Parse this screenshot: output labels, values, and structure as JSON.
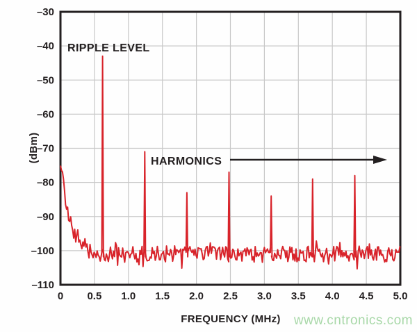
{
  "figure": {
    "background": "#fefefe"
  },
  "watermark": {
    "text": "www.cntronics.com",
    "color": "#a8d8a8"
  },
  "chart_data": {
    "type": "line",
    "title": "",
    "xlabel": "FREQUENCY (MHz)",
    "ylabel": "(dBm)",
    "xlim": [
      0,
      5
    ],
    "ylim": [
      -110,
      -30
    ],
    "grid": true,
    "legend_position": "none",
    "trace_color": "#d8232a",
    "grid_color": "#c8c8c8",
    "axis_color": "#231f20",
    "x_ticks": [
      {
        "value": 0,
        "label": "0"
      },
      {
        "value": 0.5,
        "label": "0.5"
      },
      {
        "value": 1.0,
        "label": "1.0"
      },
      {
        "value": 1.5,
        "label": "1.5"
      },
      {
        "value": 2.0,
        "label": "2.0"
      },
      {
        "value": 2.5,
        "label": "2.5"
      },
      {
        "value": 3.0,
        "label": "3.0"
      },
      {
        "value": 3.5,
        "label": "3.5"
      },
      {
        "value": 4.0,
        "label": "4.0"
      },
      {
        "value": 4.5,
        "label": "4.5"
      },
      {
        "value": 5.0,
        "label": "5.0"
      }
    ],
    "y_ticks": [
      {
        "value": -30,
        "label": "–30"
      },
      {
        "value": -40,
        "label": "–40"
      },
      {
        "value": -50,
        "label": "–50"
      },
      {
        "value": -60,
        "label": "–60"
      },
      {
        "value": -70,
        "label": "–70"
      },
      {
        "value": -80,
        "label": "–80"
      },
      {
        "value": -90,
        "label": "–90"
      },
      {
        "value": -100,
        "label": "–100"
      },
      {
        "value": -110,
        "label": "–110"
      }
    ],
    "noise_floor_dbm": -101,
    "noise_amplitude_db": 2.4,
    "low_freq_shoulder": {
      "start_dbm": -73,
      "decay_mhz": 0.13
    },
    "peaks": [
      {
        "name": "ripple",
        "freq_mhz": 0.62,
        "dbm": -43
      },
      {
        "name": "harmonic-2",
        "freq_mhz": 1.24,
        "dbm": -71
      },
      {
        "name": "harmonic-3",
        "freq_mhz": 1.86,
        "dbm": -83
      },
      {
        "name": "harmonic-4",
        "freq_mhz": 2.48,
        "dbm": -77
      },
      {
        "name": "harmonic-5",
        "freq_mhz": 3.1,
        "dbm": -84
      },
      {
        "name": "harmonic-6",
        "freq_mhz": 3.71,
        "dbm": -79
      },
      {
        "name": "harmonic-7",
        "freq_mhz": 4.33,
        "dbm": -78
      }
    ],
    "annotations": [
      {
        "text": "RIPPLE LEVEL"
      },
      {
        "text": "HARMONICS",
        "arrow": "right"
      }
    ]
  }
}
